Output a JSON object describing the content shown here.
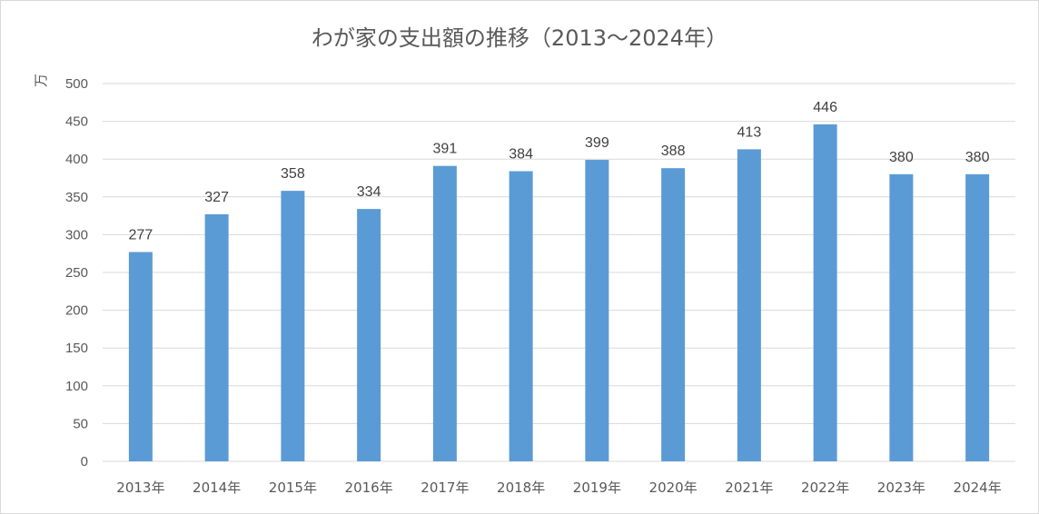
{
  "chart_data": {
    "type": "bar",
    "title": "わが家の支出額の推移（2013〜2024年）",
    "ylabel": "万",
    "xlabel": "",
    "categories": [
      "2013年",
      "2014年",
      "2015年",
      "2016年",
      "2017年",
      "2018年",
      "2019年",
      "2020年",
      "2021年",
      "2022年",
      "2023年",
      "2024年"
    ],
    "values": [
      277,
      327,
      358,
      334,
      391,
      384,
      399,
      388,
      413,
      446,
      380,
      380
    ],
    "ylim": [
      0,
      500
    ],
    "yticks": [
      0,
      50,
      100,
      150,
      200,
      250,
      300,
      350,
      400,
      450,
      500
    ],
    "grid": true,
    "data_labels": true,
    "bar_color": "#5b9bd5",
    "grid_color": "#d9d9d9"
  }
}
